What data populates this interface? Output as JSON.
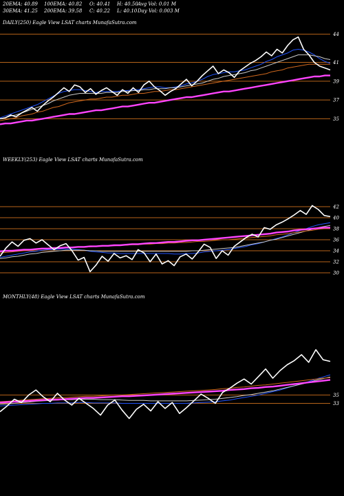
{
  "stats": [
    {
      "label": "20EMA: 40.89"
    },
    {
      "label": "100EMA: 40.82"
    },
    {
      "label": "O: 40.41"
    },
    {
      "label": "H: 40.50"
    },
    {
      "label": "Avg Vol: 0.01 M"
    },
    {
      "label": "30EMA: 41.25"
    },
    {
      "label": "200EMA: 39.58"
    },
    {
      "label": "C: 40.22"
    },
    {
      "label": "L: 40.10"
    },
    {
      "label": "Day Vol: 0.003 M"
    }
  ],
  "colors": {
    "background": "#000000",
    "grid": "#b8651a",
    "price": "#ffffff",
    "ema_fast": "#2255ff",
    "ema_slow": "#ff44ff",
    "ema_mid": "#cccccc",
    "ema_long": "#d2691e"
  },
  "chart_data": [
    {
      "type": "line",
      "title": "DAILY(250) Eagle  View  LSAT charts MunafaSutra.com",
      "yticks": [
        "44",
        "41",
        "39",
        "37",
        "35"
      ],
      "ylim": [
        34,
        45
      ],
      "series": [
        {
          "role": "price",
          "color_key": "price",
          "values": [
            35.0,
            35.1,
            35.4,
            35.2,
            35.6,
            35.9,
            36.2,
            35.8,
            36.4,
            36.9,
            37.3,
            37.8,
            38.3,
            37.9,
            38.6,
            38.4,
            37.8,
            38.2,
            37.6,
            38.0,
            38.3,
            37.9,
            37.5,
            38.1,
            37.7,
            38.3,
            37.8,
            38.6,
            39.0,
            38.4,
            38.0,
            37.5,
            37.9,
            38.2,
            38.7,
            39.2,
            38.5,
            39.0,
            39.6,
            40.1,
            40.6,
            39.8,
            40.2,
            39.9,
            39.4,
            40.1,
            40.5,
            40.9,
            41.2,
            41.6,
            42.1,
            41.7,
            42.4,
            42.0,
            42.8,
            43.4,
            43.7,
            42.4,
            41.8,
            41.0,
            40.6,
            40.4,
            40.2
          ]
        },
        {
          "role": "ema",
          "color_key": "ema_fast",
          "values": [
            35.1,
            35.3,
            35.5,
            35.7,
            35.9,
            36.1,
            36.3,
            36.5,
            36.8,
            37.1,
            37.4,
            37.7,
            37.9,
            38.0,
            38.1,
            38.1,
            38.0,
            37.9,
            37.8,
            37.9,
            37.9,
            37.9,
            37.9,
            38.0,
            38.0,
            38.1,
            38.1,
            38.2,
            38.3,
            38.4,
            38.4,
            38.3,
            38.3,
            38.4,
            38.5,
            38.7,
            38.8,
            39.0,
            39.2,
            39.5,
            39.7,
            39.8,
            39.9,
            40.0,
            40.0,
            40.1,
            40.2,
            40.4,
            40.6,
            40.8,
            41.1,
            41.3,
            41.6,
            41.8,
            42.0,
            42.3,
            42.4,
            42.3,
            42.1,
            41.8,
            41.4,
            41.1,
            40.9
          ]
        },
        {
          "role": "ema",
          "color_key": "ema_mid",
          "values": [
            35.0,
            35.1,
            35.3,
            35.4,
            35.6,
            35.8,
            36.0,
            36.2,
            36.4,
            36.6,
            36.9,
            37.1,
            37.3,
            37.5,
            37.6,
            37.7,
            37.7,
            37.7,
            37.7,
            37.7,
            37.8,
            37.8,
            37.8,
            37.9,
            37.9,
            38.0,
            38.0,
            38.1,
            38.1,
            38.2,
            38.2,
            38.2,
            38.3,
            38.3,
            38.4,
            38.5,
            38.6,
            38.7,
            38.8,
            39.0,
            39.2,
            39.3,
            39.5,
            39.6,
            39.7,
            39.8,
            39.9,
            40.1,
            40.2,
            40.4,
            40.6,
            40.8,
            41.0,
            41.2,
            41.4,
            41.6,
            41.8,
            41.8,
            41.8,
            41.7,
            41.6,
            41.4,
            41.3
          ]
        },
        {
          "role": "ema",
          "color_key": "ema_long",
          "values": [
            34.8,
            34.9,
            35.0,
            35.1,
            35.3,
            35.4,
            35.5,
            35.7,
            35.8,
            36.0,
            36.2,
            36.3,
            36.5,
            36.7,
            36.8,
            36.9,
            37.0,
            37.1,
            37.1,
            37.2,
            37.3,
            37.3,
            37.4,
            37.5,
            37.5,
            37.6,
            37.7,
            37.7,
            37.8,
            37.9,
            37.9,
            38.0,
            38.1,
            38.1,
            38.2,
            38.3,
            38.4,
            38.5,
            38.6,
            38.7,
            38.8,
            38.9,
            39.0,
            39.1,
            39.2,
            39.3,
            39.4,
            39.5,
            39.6,
            39.7,
            39.8,
            40.0,
            40.1,
            40.2,
            40.4,
            40.5,
            40.6,
            40.7,
            40.8,
            40.8,
            40.8,
            40.8,
            40.8
          ]
        },
        {
          "role": "ema200",
          "color_key": "ema_slow",
          "values": [
            34.4,
            34.5,
            34.5,
            34.6,
            34.7,
            34.8,
            34.8,
            34.9,
            35.0,
            35.1,
            35.2,
            35.3,
            35.4,
            35.5,
            35.5,
            35.6,
            35.7,
            35.8,
            35.9,
            35.9,
            36.0,
            36.1,
            36.2,
            36.3,
            36.3,
            36.4,
            36.5,
            36.6,
            36.7,
            36.7,
            36.8,
            36.9,
            37.0,
            37.1,
            37.2,
            37.3,
            37.3,
            37.4,
            37.5,
            37.6,
            37.7,
            37.8,
            37.9,
            37.9,
            38.0,
            38.1,
            38.2,
            38.3,
            38.4,
            38.5,
            38.6,
            38.7,
            38.8,
            38.9,
            39.0,
            39.1,
            39.2,
            39.3,
            39.4,
            39.5,
            39.5,
            39.6,
            39.6
          ]
        }
      ]
    },
    {
      "type": "line",
      "title": "WEEKLY(253) Eagle  View  LSAT charts MunafaSutra.com",
      "yticks": [
        "42",
        "40",
        "38",
        "36",
        "34",
        "32",
        "30"
      ],
      "ylim": [
        29.5,
        43.5
      ],
      "series": [
        {
          "role": "price",
          "color_key": "price",
          "values": [
            33.0,
            34.5,
            35.6,
            34.8,
            35.9,
            36.2,
            35.4,
            36.0,
            35.1,
            34.2,
            34.9,
            35.3,
            34.0,
            32.3,
            32.8,
            30.2,
            31.4,
            33.0,
            32.1,
            33.5,
            32.7,
            33.1,
            32.4,
            34.2,
            33.6,
            32.0,
            33.4,
            31.6,
            32.2,
            31.3,
            32.9,
            33.4,
            32.5,
            33.8,
            35.2,
            34.6,
            32.6,
            34.0,
            33.2,
            34.8,
            35.6,
            36.4,
            37.0,
            36.5,
            38.2,
            37.9,
            38.7,
            39.2,
            39.8,
            40.5,
            41.3,
            40.6,
            42.2,
            41.5,
            40.4,
            40.2
          ]
        },
        {
          "role": "ema",
          "color_key": "ema_fast",
          "values": [
            32.8,
            33.0,
            33.2,
            33.4,
            33.6,
            33.8,
            33.9,
            34.1,
            34.2,
            34.2,
            34.3,
            34.3,
            34.3,
            34.2,
            34.1,
            33.9,
            33.8,
            33.7,
            33.6,
            33.6,
            33.5,
            33.5,
            33.5,
            33.5,
            33.5,
            33.5,
            33.5,
            33.5,
            33.5,
            33.4,
            33.4,
            33.5,
            33.5,
            33.6,
            33.8,
            33.9,
            34.0,
            34.1,
            34.2,
            34.4,
            34.6,
            34.8,
            35.1,
            35.3,
            35.6,
            35.9,
            36.2,
            36.5,
            36.9,
            37.3,
            37.7,
            38.0,
            38.4,
            38.7,
            38.9,
            39.1
          ]
        },
        {
          "role": "ema",
          "color_key": "ema_mid",
          "values": [
            32.6,
            32.7,
            32.9,
            33.0,
            33.2,
            33.4,
            33.5,
            33.7,
            33.8,
            33.9,
            34.0,
            34.1,
            34.1,
            34.1,
            34.1,
            34.0,
            34.0,
            33.9,
            33.9,
            33.9,
            33.9,
            33.9,
            33.9,
            33.9,
            33.9,
            33.9,
            33.9,
            33.9,
            33.9,
            33.9,
            33.9,
            33.9,
            34.0,
            34.0,
            34.1,
            34.2,
            34.3,
            34.4,
            34.5,
            34.6,
            34.8,
            35.0,
            35.2,
            35.4,
            35.6,
            35.9,
            36.1,
            36.4,
            36.7,
            37.0,
            37.3,
            37.6,
            37.9,
            38.2,
            38.4,
            38.6
          ]
        },
        {
          "role": "ema",
          "color_key": "ema_long",
          "values": [
            33.6,
            33.7,
            33.8,
            33.9,
            34.0,
            34.1,
            34.2,
            34.3,
            34.4,
            34.4,
            34.5,
            34.6,
            34.6,
            34.7,
            34.7,
            34.7,
            34.8,
            34.8,
            34.9,
            34.9,
            35.0,
            35.0,
            35.1,
            35.1,
            35.2,
            35.2,
            35.3,
            35.3,
            35.4,
            35.4,
            35.5,
            35.5,
            35.6,
            35.7,
            35.7,
            35.8,
            35.9,
            36.0,
            36.0,
            36.1,
            36.2,
            36.3,
            36.4,
            36.5,
            36.6,
            36.7,
            36.9,
            37.0,
            37.1,
            37.3,
            37.4,
            37.6,
            37.7,
            37.9,
            38.0,
            38.1
          ]
        },
        {
          "role": "ema200",
          "color_key": "ema_slow",
          "values": [
            33.9,
            34.0,
            34.0,
            34.1,
            34.2,
            34.2,
            34.3,
            34.4,
            34.4,
            34.5,
            34.5,
            34.6,
            34.6,
            34.7,
            34.7,
            34.8,
            34.8,
            34.9,
            34.9,
            35.0,
            35.0,
            35.1,
            35.2,
            35.2,
            35.3,
            35.4,
            35.4,
            35.5,
            35.6,
            35.6,
            35.7,
            35.8,
            35.9,
            35.9,
            36.0,
            36.1,
            36.2,
            36.3,
            36.4,
            36.5,
            36.6,
            36.7,
            36.8,
            36.9,
            37.0,
            37.1,
            37.3,
            37.4,
            37.5,
            37.7,
            37.8,
            37.9,
            38.0,
            38.1,
            38.2,
            38.2
          ]
        }
      ]
    },
    {
      "type": "line",
      "title": "MONTHLY(48) Eagle  View  LSAT charts MunafaSutra.com",
      "yticks": [
        "35",
        "33"
      ],
      "ylim": [
        28,
        50
      ],
      "series": [
        {
          "role": "price",
          "color_key": "price",
          "values": [
            31.0,
            32.4,
            34.0,
            33.2,
            35.0,
            36.2,
            34.6,
            33.4,
            35.4,
            33.8,
            32.6,
            34.2,
            33.0,
            31.8,
            30.2,
            32.6,
            33.8,
            31.4,
            29.4,
            31.6,
            32.8,
            31.2,
            33.4,
            31.8,
            33.2,
            30.6,
            32.0,
            33.6,
            35.2,
            34.2,
            33.0,
            35.6,
            36.6,
            37.8,
            38.8,
            37.6,
            39.4,
            41.2,
            39.0,
            40.8,
            42.2,
            43.2,
            44.6,
            42.8,
            45.8,
            43.4,
            43.0
          ]
        },
        {
          "role": "ema",
          "color_key": "ema_fast",
          "values": [
            32.4,
            32.5,
            32.6,
            32.7,
            32.8,
            32.9,
            33.0,
            33.0,
            33.1,
            33.1,
            33.1,
            33.2,
            33.2,
            33.1,
            33.1,
            33.1,
            33.1,
            33.0,
            33.0,
            33.0,
            33.0,
            33.0,
            33.0,
            33.0,
            33.0,
            33.0,
            33.0,
            33.1,
            33.2,
            33.3,
            33.4,
            33.6,
            33.8,
            34.1,
            34.4,
            34.7,
            35.0,
            35.4,
            35.8,
            36.2,
            36.7,
            37.2,
            37.7,
            38.2,
            38.8,
            39.3,
            39.8
          ]
        },
        {
          "role": "ema",
          "color_key": "ema_mid",
          "values": [
            32.8,
            32.9,
            33.0,
            33.2,
            33.3,
            33.5,
            33.6,
            33.7,
            33.8,
            33.9,
            33.9,
            34.0,
            34.0,
            34.0,
            33.9,
            33.9,
            33.9,
            33.8,
            33.7,
            33.7,
            33.7,
            33.6,
            33.6,
            33.6,
            33.6,
            33.6,
            33.6,
            33.7,
            33.8,
            33.9,
            34.0,
            34.2,
            34.4,
            34.6,
            34.9,
            35.1,
            35.4,
            35.7,
            36.0,
            36.4,
            36.8,
            37.2,
            37.6,
            38.0,
            38.5,
            38.9,
            39.3
          ]
        },
        {
          "role": "ema",
          "color_key": "ema_long",
          "values": [
            33.4,
            33.5,
            33.6,
            33.8,
            33.9,
            34.0,
            34.1,
            34.2,
            34.3,
            34.4,
            34.5,
            34.6,
            34.7,
            34.7,
            34.8,
            34.9,
            35.0,
            35.0,
            35.1,
            35.2,
            35.3,
            35.4,
            35.5,
            35.6,
            35.7,
            35.8,
            35.9,
            36.0,
            36.1,
            36.2,
            36.3,
            36.5,
            36.6,
            36.8,
            36.9,
            37.1,
            37.3,
            37.4,
            37.6,
            37.8,
            38.0,
            38.2,
            38.4,
            38.6,
            38.8,
            39.0,
            39.1
          ]
        },
        {
          "role": "ema200",
          "color_key": "ema_slow",
          "values": [
            33.2,
            33.3,
            33.4,
            33.5,
            33.6,
            33.7,
            33.8,
            33.9,
            33.9,
            34.0,
            34.1,
            34.2,
            34.3,
            34.3,
            34.4,
            34.5,
            34.6,
            34.7,
            34.7,
            34.8,
            34.9,
            35.0,
            35.1,
            35.2,
            35.3,
            35.4,
            35.5,
            35.6,
            35.7,
            35.8,
            35.9,
            36.0,
            36.2,
            36.3,
            36.4,
            36.6,
            36.7,
            36.9,
            37.0,
            37.2,
            37.4,
            37.6,
            37.8,
            38.0,
            38.2,
            38.4,
            38.6
          ]
        }
      ]
    }
  ]
}
